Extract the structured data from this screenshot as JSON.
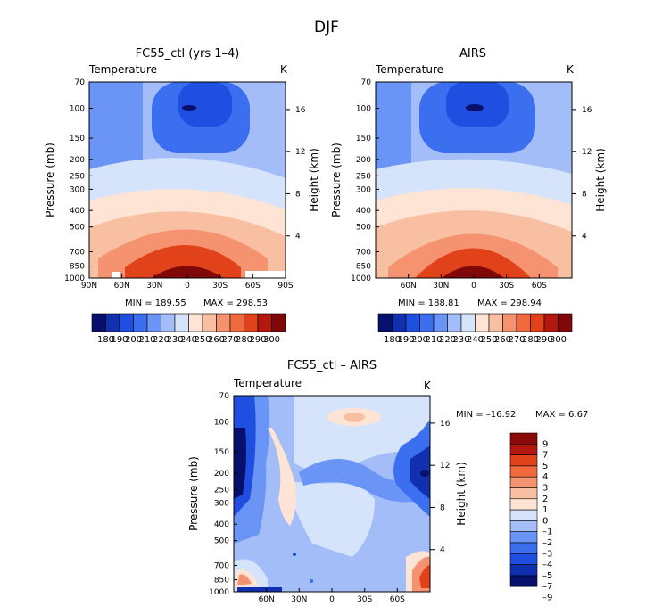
{
  "figure_title": "DJF",
  "chart_data": [
    {
      "type": "heatmap",
      "title": "FC55_ctl (yrs 1–4)",
      "variable_label": "Temperature",
      "units": "K",
      "ylabel": "Pressure (mb)",
      "ylabel_right": "Height (km)",
      "x_ticks": [
        "90N",
        "60N",
        "30N",
        "0",
        "30S",
        "60S",
        "90S"
      ],
      "y_ticks": [
        "70",
        "100",
        "150",
        "200",
        "250",
        "300",
        "400",
        "500",
        "700",
        "850",
        "1000"
      ],
      "height_ticks": [
        "16",
        "12",
        "8",
        "4"
      ],
      "min_label": "MIN = 189.55",
      "max_label": "MAX = 298.53",
      "colorbar_labels": [
        "180",
        "190",
        "200",
        "210",
        "220",
        "230",
        "240",
        "250",
        "260",
        "270",
        "280",
        "290",
        "300"
      ]
    },
    {
      "type": "heatmap",
      "title": "AIRS",
      "variable_label": "Temperature",
      "units": "K",
      "ylabel": "Pressure (mb)",
      "ylabel_right": "Height (km)",
      "x_ticks": [
        "60N",
        "30N",
        "0",
        "30S",
        "60S"
      ],
      "y_ticks": [
        "70",
        "100",
        "150",
        "200",
        "250",
        "300",
        "400",
        "500",
        "700",
        "850",
        "1000"
      ],
      "height_ticks": [
        "16",
        "12",
        "8",
        "4"
      ],
      "min_label": "MIN = 188.81",
      "max_label": "MAX = 298.94",
      "colorbar_labels": [
        "180",
        "190",
        "200",
        "210",
        "220",
        "230",
        "240",
        "250",
        "260",
        "270",
        "280",
        "290",
        "300"
      ]
    },
    {
      "type": "heatmap",
      "title": "FC55_ctl – AIRS",
      "variable_label": "Temperature",
      "units": "K",
      "ylabel": "Pressure (mb)",
      "ylabel_right": "Height (km)",
      "x_ticks": [
        "60N",
        "30N",
        "0",
        "30S",
        "60S"
      ],
      "y_ticks": [
        "70",
        "100",
        "150",
        "200",
        "250",
        "300",
        "400",
        "500",
        "700",
        "850",
        "1000"
      ],
      "height_ticks": [
        "16",
        "12",
        "8",
        "4"
      ],
      "min_label": "MIN = –16.92",
      "max_label": "MAX =    6.67",
      "colorbar_labels": [
        "9",
        "7",
        "5",
        "4",
        "3",
        "2",
        "1",
        "0",
        "–1",
        "–2",
        "–3",
        "–4",
        "–5",
        "–7",
        "–9"
      ]
    }
  ],
  "colors": {
    "temp_scale": [
      "#08106e",
      "#1030b0",
      "#1f4fe0",
      "#3b6ff0",
      "#6a94f5",
      "#a3bdf8",
      "#d6e4fb",
      "#fde4d4",
      "#f9bfa3",
      "#f59371",
      "#f06a3e",
      "#e2421a",
      "#b3170d",
      "#800808"
    ],
    "diff_scale": [
      "#8a0a08",
      "#b3170d",
      "#e2421a",
      "#f06a3e",
      "#f59371",
      "#f9bfa3",
      "#fde4d4",
      "#d6e4fb",
      "#a3bdf8",
      "#6a94f5",
      "#3b6ff0",
      "#1f4fe0",
      "#1030b0",
      "#08106e"
    ]
  }
}
